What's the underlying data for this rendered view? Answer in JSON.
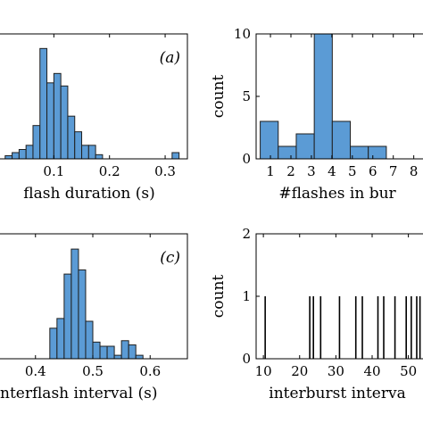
{
  "chart_data": [
    {
      "type": "bar",
      "panel_label": "(a)",
      "xlabel": "flash duration (s)",
      "ylabel": "",
      "xlim": [
        0.0,
        0.34
      ],
      "ylim": [
        0,
        12
      ],
      "xticks": [
        0.1,
        0.2,
        0.3
      ],
      "xtick_labels": [
        "0.1",
        "0.2",
        "0.3"
      ],
      "yticks": [],
      "bar_color": "#5b9bd5",
      "bin_width": 0.0125,
      "bins_left": [
        0.0,
        0.0125,
        0.025,
        0.0375,
        0.05,
        0.0625,
        0.075,
        0.0875,
        0.1,
        0.1125,
        0.125,
        0.1375,
        0.15,
        0.1625,
        0.175,
        0.3125
      ],
      "counts": [
        0,
        0.3,
        0.6,
        0.9,
        1.3,
        3.2,
        10.6,
        7.3,
        8.2,
        7.0,
        4.1,
        2.6,
        1.3,
        1.3,
        0.4,
        0.6
      ]
    },
    {
      "type": "bar",
      "panel_label": "",
      "xlabel": "#flashes in bur",
      "ylabel": "count",
      "xlim": [
        0.3,
        8.8
      ],
      "ylim": [
        0,
        10
      ],
      "xticks": [
        1,
        2,
        3,
        4,
        5,
        6,
        7,
        8
      ],
      "xtick_labels": [
        "1",
        "2",
        "3",
        "4",
        "5",
        "6",
        "7",
        "8"
      ],
      "yticks": [
        0,
        5,
        10
      ],
      "ytick_labels": [
        "0",
        "5",
        "10"
      ],
      "bar_color": "#5b9bd5",
      "bin_width": 0.88,
      "bins_left": [
        0.5,
        1.38,
        2.26,
        3.14,
        4.02,
        4.9,
        5.78
      ],
      "counts": [
        3,
        1,
        2,
        10,
        3,
        1,
        1
      ]
    },
    {
      "type": "bar",
      "panel_label": "(c)",
      "xlabel": "nterflash interval (s)",
      "ylabel": "",
      "xlim": [
        0.335,
        0.665
      ],
      "ylim": [
        0,
        9
      ],
      "xticks": [
        0.4,
        0.5,
        0.6
      ],
      "xtick_labels": [
        "0.4",
        "0.5",
        "0.6"
      ],
      "yticks": [],
      "bar_color": "#5b9bd5",
      "bin_width": 0.0125,
      "bins_left": [
        0.425,
        0.4375,
        0.45,
        0.4625,
        0.475,
        0.4875,
        0.5,
        0.5125,
        0.525,
        0.5375,
        0.55,
        0.5625,
        0.575
      ],
      "counts": [
        2.2,
        2.9,
        6.1,
        7.9,
        6.4,
        2.7,
        1.2,
        0.9,
        0.9,
        0.25,
        1.3,
        1.0,
        0.25
      ]
    },
    {
      "type": "bar",
      "panel_label": "",
      "xlabel": "interburst interva",
      "ylabel": "count",
      "xlim": [
        8,
        56
      ],
      "ylim": [
        0,
        2
      ],
      "xticks": [
        10,
        20,
        30,
        40,
        50
      ],
      "xtick_labels": [
        "10",
        "20",
        "30",
        "40",
        "50"
      ],
      "yticks": [
        0,
        1,
        2
      ],
      "ytick_labels": [
        "0",
        "1",
        "2"
      ],
      "bar_color": "#000000",
      "spikes": [
        10.5,
        22.8,
        23.8,
        25.8,
        31.0,
        35.5,
        37.3,
        41.6,
        43.2,
        46.3,
        49.4,
        50.8,
        52.3,
        53.2
      ]
    }
  ]
}
